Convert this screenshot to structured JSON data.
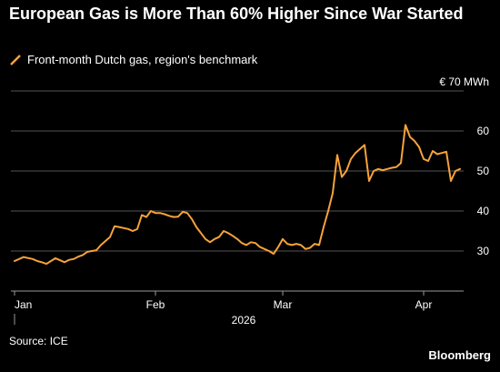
{
  "title": "European Gas is More Than 60% Higher Since War Started",
  "source": "Source: ICE",
  "brand": "Bloomberg",
  "colors": {
    "line": "#f7a23a",
    "background": "#000000",
    "grid": "#555555",
    "axis": "#999999",
    "text": "#ffffff"
  },
  "chart_data": {
    "type": "line",
    "title": "European Gas is More Than 60% Higher Since War Started",
    "unit_label": "€ 70 MWh",
    "year_label": "2026",
    "ylim": [
      20,
      70
    ],
    "y_ticks": [
      30,
      40,
      50,
      60
    ],
    "x_range": [
      "2026-01-01",
      "2026-04-09"
    ],
    "x_ticks": [
      {
        "label": "Jan",
        "date": "2026-01-01"
      },
      {
        "label": "Feb",
        "date": "2026-02-01"
      },
      {
        "label": "Mar",
        "date": "2026-03-01"
      },
      {
        "label": "Apr",
        "date": "2026-04-01"
      }
    ],
    "grid": true,
    "legend_position": "top-left",
    "series": [
      {
        "name": "Front-month Dutch gas, region's benchmark",
        "points": [
          [
            "2026-01-01",
            27.5
          ],
          [
            "2026-01-02",
            28.0
          ],
          [
            "2026-01-03",
            28.5
          ],
          [
            "2026-01-05",
            28.0
          ],
          [
            "2026-01-06",
            27.5
          ],
          [
            "2026-01-07",
            27.2
          ],
          [
            "2026-01-08",
            26.8
          ],
          [
            "2026-01-09",
            27.5
          ],
          [
            "2026-01-10",
            28.2
          ],
          [
            "2026-01-12",
            27.2
          ],
          [
            "2026-01-13",
            27.8
          ],
          [
            "2026-01-14",
            28.0
          ],
          [
            "2026-01-15",
            28.6
          ],
          [
            "2026-01-16",
            29.0
          ],
          [
            "2026-01-17",
            29.8
          ],
          [
            "2026-01-19",
            30.2
          ],
          [
            "2026-01-20",
            31.5
          ],
          [
            "2026-01-21",
            32.5
          ],
          [
            "2026-01-22",
            33.5
          ],
          [
            "2026-01-23",
            36.2
          ],
          [
            "2026-01-24",
            36.0
          ],
          [
            "2026-01-26",
            35.5
          ],
          [
            "2026-01-27",
            35.0
          ],
          [
            "2026-01-28",
            35.5
          ],
          [
            "2026-01-29",
            39.0
          ],
          [
            "2026-01-30",
            38.5
          ],
          [
            "2026-01-31",
            40.0
          ],
          [
            "2026-02-01",
            39.5
          ],
          [
            "2026-02-02",
            39.5
          ],
          [
            "2026-02-03",
            39.2
          ],
          [
            "2026-02-04",
            38.8
          ],
          [
            "2026-02-05",
            38.5
          ],
          [
            "2026-02-06",
            38.6
          ],
          [
            "2026-02-07",
            39.8
          ],
          [
            "2026-02-08",
            39.5
          ],
          [
            "2026-02-09",
            38.0
          ],
          [
            "2026-02-10",
            36.0
          ],
          [
            "2026-02-11",
            34.5
          ],
          [
            "2026-02-12",
            33.0
          ],
          [
            "2026-02-13",
            32.2
          ],
          [
            "2026-02-14",
            33.0
          ],
          [
            "2026-02-15",
            33.5
          ],
          [
            "2026-02-16",
            35.0
          ],
          [
            "2026-02-17",
            34.5
          ],
          [
            "2026-02-18",
            33.8
          ],
          [
            "2026-02-19",
            33.0
          ],
          [
            "2026-02-20",
            32.0
          ],
          [
            "2026-02-21",
            31.5
          ],
          [
            "2026-02-22",
            32.2
          ],
          [
            "2026-02-23",
            32.0
          ],
          [
            "2026-02-24",
            31.0
          ],
          [
            "2026-02-25",
            30.5
          ],
          [
            "2026-02-26",
            30.0
          ],
          [
            "2026-02-27",
            29.3
          ],
          [
            "2026-02-28",
            31.0
          ],
          [
            "2026-03-01",
            33.0
          ],
          [
            "2026-03-02",
            31.8
          ],
          [
            "2026-03-03",
            31.5
          ],
          [
            "2026-03-04",
            31.8
          ],
          [
            "2026-03-05",
            31.5
          ],
          [
            "2026-03-06",
            30.5
          ],
          [
            "2026-03-07",
            30.8
          ],
          [
            "2026-03-08",
            31.8
          ],
          [
            "2026-03-09",
            31.5
          ],
          [
            "2026-03-10",
            36.0
          ],
          [
            "2026-03-11",
            40.0
          ],
          [
            "2026-03-12",
            44.5
          ],
          [
            "2026-03-13",
            54.0
          ],
          [
            "2026-03-14",
            48.5
          ],
          [
            "2026-03-15",
            50.0
          ],
          [
            "2026-03-16",
            53.0
          ],
          [
            "2026-03-17",
            54.5
          ],
          [
            "2026-03-18",
            55.5
          ],
          [
            "2026-03-19",
            56.5
          ],
          [
            "2026-03-20",
            47.5
          ],
          [
            "2026-03-21",
            50.0
          ],
          [
            "2026-03-22",
            50.5
          ],
          [
            "2026-03-23",
            50.2
          ],
          [
            "2026-03-24",
            50.5
          ],
          [
            "2026-03-25",
            50.8
          ],
          [
            "2026-03-26",
            51.0
          ],
          [
            "2026-03-27",
            52.0
          ],
          [
            "2026-03-28",
            61.5
          ],
          [
            "2026-03-29",
            58.5
          ],
          [
            "2026-03-30",
            57.5
          ],
          [
            "2026-03-31",
            56.0
          ],
          [
            "2026-04-01",
            53.0
          ],
          [
            "2026-04-02",
            52.5
          ],
          [
            "2026-04-03",
            55.0
          ],
          [
            "2026-04-04",
            54.2
          ],
          [
            "2026-04-05",
            54.5
          ],
          [
            "2026-04-06",
            54.8
          ],
          [
            "2026-04-07",
            47.5
          ],
          [
            "2026-04-08",
            50.0
          ],
          [
            "2026-04-09",
            50.5
          ]
        ]
      }
    ]
  }
}
